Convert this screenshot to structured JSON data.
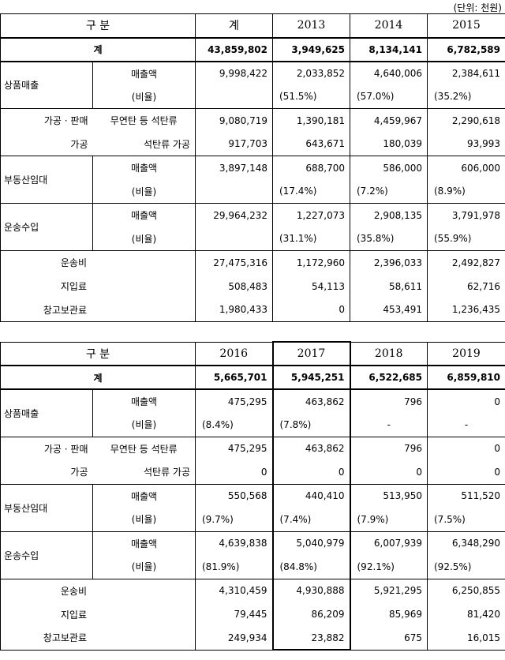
{
  "unit_note": "(단위: 천원)",
  "tables": [
    {
      "header": [
        "구 분",
        "계",
        "2013",
        "2014",
        "2015"
      ],
      "total": {
        "label": "계",
        "values": [
          "43,859,802",
          "3,949,625",
          "8,134,141",
          "6,782,589"
        ]
      },
      "groups": [
        {
          "label": "상품매출",
          "rows": [
            {
              "label": "매출액",
              "values": [
                "9,998,422",
                "2,033,852",
                "4,640,006",
                "2,384,611"
              ]
            },
            {
              "label": "(비율)",
              "values": [
                null,
                "(51.5%)",
                "(57.0%)",
                "(35.2%)"
              ]
            }
          ]
        },
        {
          "rows": [
            {
              "side": "가공 · 판매",
              "label": "무연탄 등 석탄류",
              "values": [
                "9,080,719",
                "1,390,181",
                "4,459,967",
                "2,290,618"
              ]
            },
            {
              "side": "가공",
              "label": "석탄류 가공",
              "values": [
                "917,703",
                "643,671",
                "180,039",
                "93,993"
              ]
            }
          ]
        },
        {
          "label": "부동산임대",
          "rows": [
            {
              "label": "매출액",
              "values": [
                "3,897,148",
                "688,700",
                "586,000",
                "606,000"
              ]
            },
            {
              "label": "(비율)",
              "values": [
                null,
                "(17.4%)",
                "(7.2%)",
                "(8.9%)"
              ]
            }
          ]
        },
        {
          "label": "운송수입",
          "rows": [
            {
              "label": "매출액",
              "values": [
                "29,964,232",
                "1,227,073",
                "2,908,135",
                "3,791,978"
              ]
            },
            {
              "label": "(비율)",
              "values": [
                null,
                "(31.1%)",
                "(35.8%)",
                "(55.9%)"
              ]
            }
          ]
        },
        {
          "rows": [
            {
              "label": "운송비",
              "values": [
                "27,475,316",
                "1,172,960",
                "2,396,033",
                "2,492,827"
              ]
            },
            {
              "label": "지입료",
              "values": [
                "508,483",
                "54,113",
                "58,611",
                "62,716"
              ]
            },
            {
              "label": "창고보관료",
              "values": [
                "1,980,433",
                "0",
                "453,491",
                "1,236,435"
              ]
            }
          ]
        }
      ]
    },
    {
      "header": [
        "구 분",
        "2016",
        "2017",
        "2018",
        "2019"
      ],
      "highlight_column": "2017",
      "total": {
        "label": "계",
        "values": [
          "5,665,701",
          "5,945,251",
          "6,522,685",
          "6,859,810"
        ]
      },
      "groups": [
        {
          "label": "상품매출",
          "rows": [
            {
              "label": "매출액",
              "values": [
                "475,295",
                "463,862",
                "796",
                "0"
              ]
            },
            {
              "label": "(비율)",
              "values": [
                "(8.4%)",
                "(7.8%)",
                "-",
                "-"
              ]
            }
          ]
        },
        {
          "rows": [
            {
              "side": "가공 · 판매",
              "label": "무연탄 등 석탄류",
              "values": [
                "475,295",
                "463,862",
                "796",
                "0"
              ]
            },
            {
              "side": "가공",
              "label": "석탄류 가공",
              "values": [
                "0",
                "0",
                "0",
                "0"
              ]
            }
          ]
        },
        {
          "label": "부동산임대",
          "rows": [
            {
              "label": "매출액",
              "values": [
                "550,568",
                "440,410",
                "513,950",
                "511,520"
              ]
            },
            {
              "label": "(비율)",
              "values": [
                "(9.7%)",
                "(7.4%)",
                "(7.9%)",
                "(7.5%)"
              ]
            }
          ]
        },
        {
          "label": "운송수입",
          "rows": [
            {
              "label": "매출액",
              "values": [
                "4,639,838",
                "5,040,979",
                "6,007,939",
                "6,348,290"
              ]
            },
            {
              "label": "(비율)",
              "values": [
                "(81.9%)",
                "(84.8%)",
                "(92.1%)",
                "(92.5%)"
              ]
            }
          ]
        },
        {
          "rows": [
            {
              "label": "운송비",
              "values": [
                "4,310,459",
                "4,930,888",
                "5,921,295",
                "6,250,855"
              ]
            },
            {
              "label": "지입료",
              "values": [
                "79,445",
                "86,209",
                "85,969",
                "81,420"
              ]
            },
            {
              "label": "창고보관료",
              "values": [
                "249,934",
                "23,882",
                "675",
                "16,015"
              ]
            }
          ]
        }
      ]
    }
  ]
}
